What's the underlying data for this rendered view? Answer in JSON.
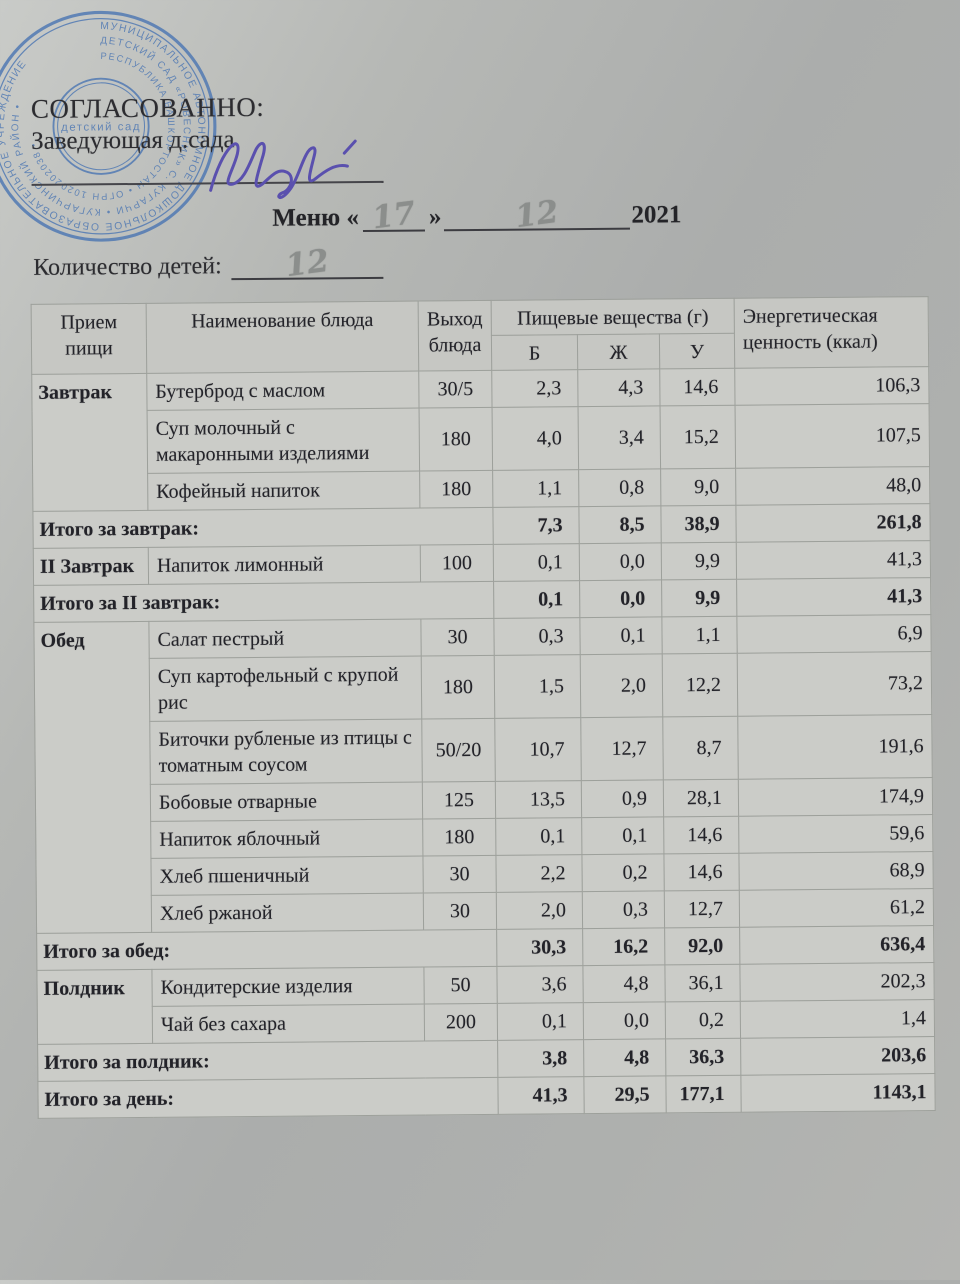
{
  "page": {
    "approved_label": "СОГЛАСОВАННО:",
    "approver_title": "Заведующая д.сада",
    "menu_prefix": "Меню «",
    "menu_day": "17",
    "menu_close_quote": "»",
    "menu_month": "12",
    "menu_year": "2021",
    "children_count_label": "Количество детей:",
    "children_count": "12"
  },
  "stamp": {
    "color": "#4d77b3",
    "ring_text_outer": "МУНИЦИПАЛЬНОЕ АВТОНОМНОЕ ДОШКОЛЬНОЕ ОБРАЗОВАТЕЛЬНОЕ УЧРЕЖДЕНИЕ",
    "ring_text_middle": "ДЕТСКИЙ САД «РОВЕСНИК» С. КУГАРЧИ • КУГАРЧИНСКИЙ РАЙОН •",
    "ring_text_inner": "РЕСПУБЛИКА БАШКОРТОСТАН • ОГРН 1020202038 •",
    "center_text": "детский сад"
  },
  "ink": {
    "signature_color": "#5a50ae",
    "pencil_color": "#8b8e8c"
  },
  "table": {
    "header": {
      "col_meal": "Прием пищи",
      "col_dish": "Наименование блюда",
      "col_out": "Выход блюда",
      "col_nutrients": "Пищевые вещества (г)",
      "col_b": "Б",
      "col_zh": "Ж",
      "col_u": "У",
      "col_energy": "Энергетическая ценность (ккал)"
    },
    "sections": [
      {
        "meal": "Завтрак",
        "dishes": [
          {
            "name": "Бутерброд с маслом",
            "out": "30/5",
            "b": "2,3",
            "zh": "4,3",
            "u": "14,6",
            "kcal": "106,3"
          },
          {
            "name": "Суп молочный с макаронными изделиями",
            "out": "180",
            "b": "4,0",
            "zh": "3,4",
            "u": "15,2",
            "kcal": "107,5"
          },
          {
            "name": "Кофейный напиток",
            "out": "180",
            "b": "1,1",
            "zh": "0,8",
            "u": "9,0",
            "kcal": "48,0"
          }
        ],
        "total": {
          "label": "Итого за завтрак:",
          "b": "7,3",
          "zh": "8,5",
          "u": "38,9",
          "kcal": "261,8"
        }
      },
      {
        "meal": "II Завтрак",
        "dishes": [
          {
            "name": "Напиток лимонный",
            "out": "100",
            "b": "0,1",
            "zh": "0,0",
            "u": "9,9",
            "kcal": "41,3"
          }
        ],
        "total": {
          "label": "Итого за II завтрак:",
          "b": "0,1",
          "zh": "0,0",
          "u": "9,9",
          "kcal": "41,3"
        }
      },
      {
        "meal": "Обед",
        "dishes": [
          {
            "name": "Салат пестрый",
            "out": "30",
            "b": "0,3",
            "zh": "0,1",
            "u": "1,1",
            "kcal": "6,9"
          },
          {
            "name": "Суп картофельный с крупой рис",
            "out": "180",
            "b": "1,5",
            "zh": "2,0",
            "u": "12,2",
            "kcal": "73,2"
          },
          {
            "name": "Биточки рубленые из птицы с томатным соусом",
            "out": "50/20",
            "b": "10,7",
            "zh": "12,7",
            "u": "8,7",
            "kcal": "191,6"
          },
          {
            "name": "Бобовые отварные",
            "out": "125",
            "b": "13,5",
            "zh": "0,9",
            "u": "28,1",
            "kcal": "174,9"
          },
          {
            "name": "Напиток яблочный",
            "out": "180",
            "b": "0,1",
            "zh": "0,1",
            "u": "14,6",
            "kcal": "59,6"
          },
          {
            "name": "Хлеб пшеничный",
            "out": "30",
            "b": "2,2",
            "zh": "0,2",
            "u": "14,6",
            "kcal": "68,9"
          },
          {
            "name": "Хлеб ржаной",
            "out": "30",
            "b": "2,0",
            "zh": "0,3",
            "u": "12,7",
            "kcal": "61,2"
          }
        ],
        "total": {
          "label": "Итого за обед:",
          "b": "30,3",
          "zh": "16,2",
          "u": "92,0",
          "kcal": "636,4"
        }
      },
      {
        "meal": "Полдник",
        "dishes": [
          {
            "name": "Кондитерские изделия",
            "out": "50",
            "b": "3,6",
            "zh": "4,8",
            "u": "36,1",
            "kcal": "202,3"
          },
          {
            "name": "Чай без сахара",
            "out": "200",
            "b": "0,1",
            "zh": "0,0",
            "u": "0,2",
            "kcal": "1,4"
          }
        ],
        "total": {
          "label": "Итого за полдник:",
          "b": "3,8",
          "zh": "4,8",
          "u": "36,3",
          "kcal": "203,6"
        }
      }
    ],
    "grand_total": {
      "label": "Итого за день:",
      "b": "41,3",
      "zh": "29,5",
      "u": "177,1",
      "kcal": "1143,1"
    }
  }
}
